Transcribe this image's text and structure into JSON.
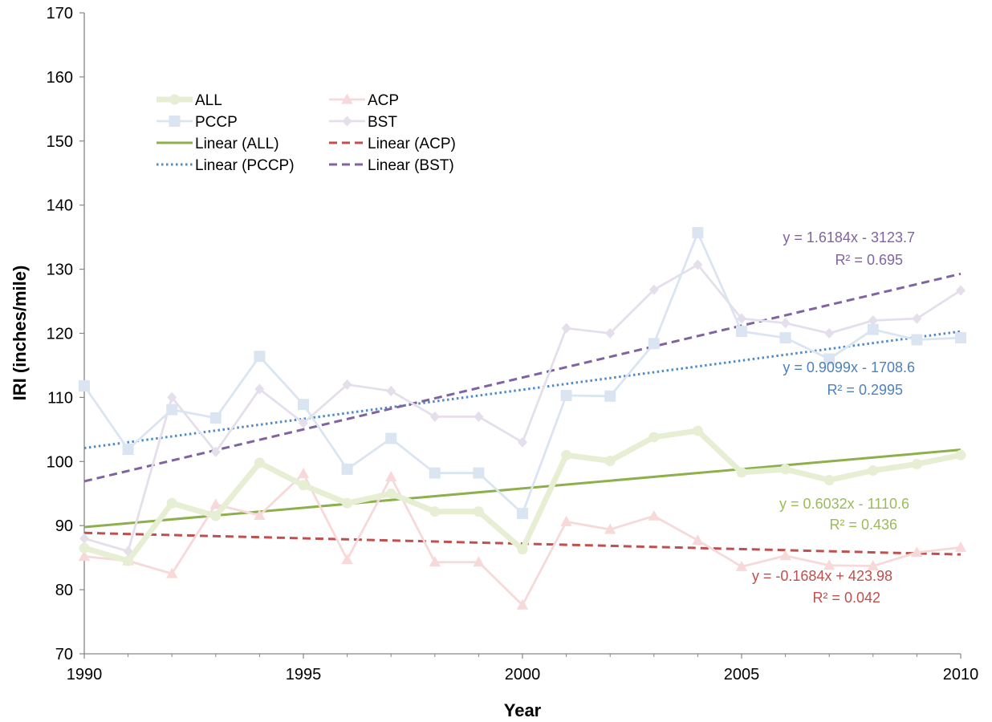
{
  "chart_data": {
    "type": "line",
    "title": "",
    "xlabel": "Year",
    "ylabel": "IRI (inches/mile)",
    "xlim": [
      1990,
      2010
    ],
    "ylim": [
      70,
      170
    ],
    "x_ticks": [
      "1990",
      "1995",
      "2000",
      "2005",
      "2010"
    ],
    "y_ticks": [
      "70",
      "80",
      "90",
      "100",
      "110",
      "120",
      "130",
      "140",
      "150",
      "160",
      "170"
    ],
    "grid": false,
    "legend_position": "top-left",
    "x": [
      1990,
      1991,
      1992,
      1993,
      1994,
      1995,
      1996,
      1997,
      1998,
      1999,
      2000,
      2001,
      2002,
      2003,
      2004,
      2005,
      2006,
      2007,
      2008,
      2009,
      2010
    ],
    "series": [
      {
        "name": "ALL",
        "color": "#e6efd4",
        "marker": "circle",
        "values": [
          86.5,
          84.5,
          93.5,
          91.5,
          99.8,
          96.3,
          93.5,
          95.0,
          92.2,
          92.2,
          86.3,
          101.0,
          100.1,
          103.8,
          104.8,
          98.3,
          98.8,
          97.1,
          98.6,
          99.6,
          101.0
        ]
      },
      {
        "name": "ACP",
        "color": "#f6d9d8",
        "marker": "triangle",
        "values": [
          85.2,
          84.5,
          82.5,
          93.3,
          91.6,
          98.1,
          84.7,
          97.6,
          84.3,
          84.3,
          77.6,
          90.6,
          89.4,
          91.5,
          87.7,
          83.6,
          85.3,
          83.8,
          83.7,
          85.8,
          86.6
        ]
      },
      {
        "name": "PCCP",
        "color": "#dbe5f1",
        "marker": "square",
        "values": [
          111.8,
          101.9,
          108.1,
          106.8,
          116.4,
          108.9,
          98.8,
          103.6,
          98.2,
          98.2,
          91.9,
          110.3,
          110.2,
          118.4,
          135.7,
          120.3,
          119.3,
          116.0,
          120.6,
          119.0,
          119.3
        ]
      },
      {
        "name": "BST",
        "color": "#e5dfec",
        "marker": "diamond",
        "values": [
          88.0,
          86.0,
          110.0,
          101.5,
          111.3,
          106.0,
          112.0,
          111.0,
          107.0,
          107.0,
          103.0,
          120.8,
          120.0,
          126.8,
          130.7,
          122.3,
          121.6,
          120.0,
          122.0,
          122.3,
          126.7
        ]
      }
    ],
    "trendlines": [
      {
        "name": "Linear (ALL)",
        "color": "#8db04c",
        "dash": "solid",
        "slope": 0.6032,
        "intercept": -1110.6,
        "equation": "y = 0.6032x - 1110.6",
        "r2": "R² = 0.436"
      },
      {
        "name": "Linear (ACP)",
        "color": "#c0504d",
        "dash": "dash",
        "slope": -0.1684,
        "intercept": 423.98,
        "equation": "y = -0.1684x + 423.98",
        "r2": "R² = 0.042"
      },
      {
        "name": "Linear (PCCP)",
        "color": "#4f8ac9",
        "dash": "dot",
        "slope": 0.9099,
        "intercept": -1708.6,
        "equation": "y = 0.9099x - 1708.6",
        "r2": "R² = 0.2995"
      },
      {
        "name": "Linear (BST)",
        "color": "#8064a2",
        "dash": "dash",
        "slope": 1.6184,
        "intercept": -3123.7,
        "equation": "y = 1.6184x - 3123.7",
        "r2": "R² = 0.695"
      }
    ],
    "equation_colors": {
      "Linear (ALL)": "#9bbb59",
      "Linear (ACP)": "#c0504d",
      "Linear (PCCP)": "#4f81bd",
      "Linear (BST)": "#8064a2"
    },
    "legend_order": [
      "ALL",
      "ACP",
      "PCCP",
      "BST",
      "Linear (ALL)",
      "Linear (ACP)",
      "Linear (PCCP)",
      "Linear (BST)"
    ]
  }
}
